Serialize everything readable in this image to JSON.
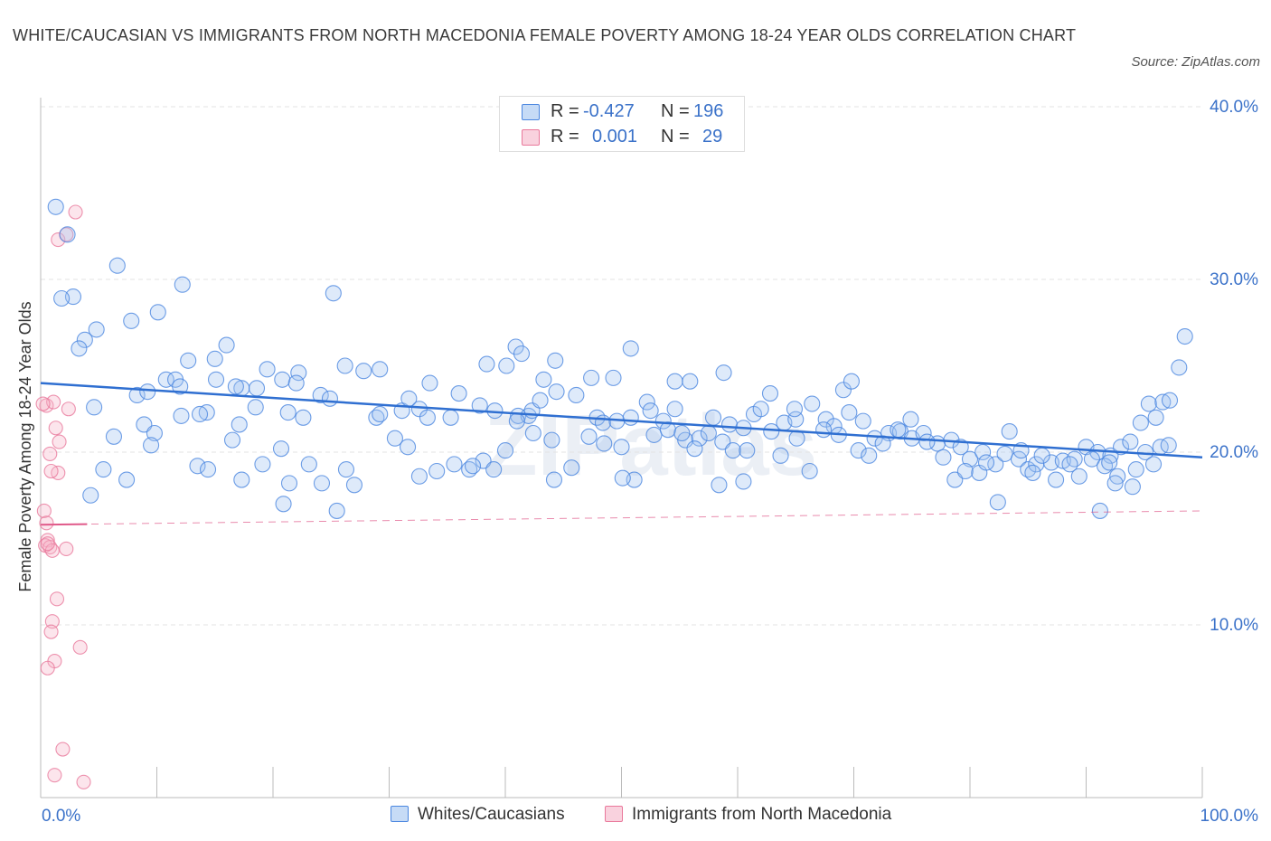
{
  "title": "WHITE/CAUCASIAN VS IMMIGRANTS FROM NORTH MACEDONIA FEMALE POVERTY AMONG 18-24 YEAR OLDS CORRELATION CHART",
  "source": "Source: ZipAtlas.com",
  "watermark": "ZIPatlas",
  "colors": {
    "blue": "#4a86e0",
    "blue_fill": "rgba(160,195,240,0.35)",
    "blue_line": "#2f6fd1",
    "pink": "#e9789b",
    "pink_fill": "rgba(245,180,200,0.35)",
    "pink_line": "#e05a8a",
    "grid": "#e3e3e3",
    "axis_text": "#3b72c9"
  },
  "legend": {
    "rows": [
      {
        "r_label": "R =",
        "r_value": "-0.427",
        "n_label": "N =",
        "n_value": "196"
      },
      {
        "r_label": "R =",
        "r_value": "0.001",
        "n_label": "N =",
        "n_value": "29"
      }
    ]
  },
  "chart_data": {
    "type": "scatter",
    "title": "WHITE/CAUCASIAN VS IMMIGRANTS FROM NORTH MACEDONIA FEMALE POVERTY AMONG 18-24 YEAR OLDS CORRELATION CHART",
    "xlabel": "",
    "ylabel": "Female Poverty Among 18-24 Year Olds",
    "xlim": [
      0,
      100
    ],
    "ylim": [
      0,
      40
    ],
    "x_tick_labels": [
      "0.0%",
      "100.0%"
    ],
    "y_ticks": [
      10,
      20,
      30,
      40
    ],
    "y_tick_labels": [
      "10.0%",
      "20.0%",
      "30.0%",
      "40.0%"
    ],
    "grid": true,
    "series": [
      {
        "name": "Whites/Caucasians",
        "R": -0.427,
        "N": 196,
        "trend": {
          "x": [
            0,
            100
          ],
          "y": [
            24.0,
            19.7
          ]
        },
        "points": [
          [
            1.3,
            34.2
          ],
          [
            2.3,
            32.6
          ],
          [
            6.6,
            30.8
          ],
          [
            2.8,
            29.0
          ],
          [
            1.8,
            28.9
          ],
          [
            12.2,
            29.7
          ],
          [
            25.2,
            29.2
          ],
          [
            10.1,
            28.1
          ],
          [
            7.8,
            27.6
          ],
          [
            4.8,
            27.1
          ],
          [
            3.8,
            26.5
          ],
          [
            3.3,
            26.0
          ],
          [
            16.0,
            26.2
          ],
          [
            15.0,
            25.4
          ],
          [
            12.7,
            25.3
          ],
          [
            26.2,
            25.0
          ],
          [
            27.8,
            24.7
          ],
          [
            29.2,
            24.8
          ],
          [
            19.5,
            24.8
          ],
          [
            15.1,
            24.2
          ],
          [
            10.8,
            24.2
          ],
          [
            11.6,
            24.2
          ],
          [
            12.0,
            23.8
          ],
          [
            17.3,
            23.7
          ],
          [
            8.3,
            23.3
          ],
          [
            24.1,
            23.3
          ],
          [
            24.9,
            23.1
          ],
          [
            4.6,
            22.6
          ],
          [
            18.5,
            22.6
          ],
          [
            14.3,
            22.3
          ],
          [
            13.7,
            22.2
          ],
          [
            21.3,
            22.3
          ],
          [
            22.6,
            22.0
          ],
          [
            8.9,
            21.6
          ],
          [
            9.8,
            21.1
          ],
          [
            17.1,
            21.6
          ],
          [
            6.3,
            20.9
          ],
          [
            16.5,
            20.7
          ],
          [
            9.5,
            20.4
          ],
          [
            20.7,
            20.2
          ],
          [
            13.5,
            19.2
          ],
          [
            5.4,
            19.0
          ],
          [
            14.4,
            19.0
          ],
          [
            19.1,
            19.3
          ],
          [
            23.1,
            19.3
          ],
          [
            7.4,
            18.4
          ],
          [
            21.4,
            18.2
          ],
          [
            17.3,
            18.4
          ],
          [
            24.2,
            18.2
          ],
          [
            4.3,
            17.5
          ],
          [
            20.9,
            17.0
          ],
          [
            25.5,
            16.6
          ],
          [
            28.9,
            22.0
          ],
          [
            29.2,
            22.2
          ],
          [
            31.1,
            22.4
          ],
          [
            32.6,
            22.5
          ],
          [
            33.3,
            22.0
          ],
          [
            35.3,
            22.0
          ],
          [
            36.0,
            23.4
          ],
          [
            37.8,
            22.7
          ],
          [
            39.1,
            22.4
          ],
          [
            41.1,
            22.1
          ],
          [
            42.0,
            22.1
          ],
          [
            42.3,
            22.4
          ],
          [
            43.0,
            23.0
          ],
          [
            44.4,
            23.5
          ],
          [
            46.1,
            23.3
          ],
          [
            47.4,
            24.3
          ],
          [
            47.9,
            22.0
          ],
          [
            48.4,
            21.7
          ],
          [
            49.6,
            21.8
          ],
          [
            50.8,
            22.0
          ],
          [
            52.2,
            22.9
          ],
          [
            52.5,
            22.4
          ],
          [
            53.6,
            21.8
          ],
          [
            54.6,
            22.5
          ],
          [
            55.5,
            20.7
          ],
          [
            56.7,
            20.8
          ],
          [
            57.9,
            22.0
          ],
          [
            59.3,
            21.6
          ],
          [
            60.5,
            21.4
          ],
          [
            61.4,
            22.2
          ],
          [
            62.9,
            21.2
          ],
          [
            64.0,
            21.7
          ],
          [
            65.0,
            21.9
          ],
          [
            66.4,
            22.8
          ],
          [
            67.6,
            21.9
          ],
          [
            68.3,
            21.5
          ],
          [
            69.6,
            22.3
          ],
          [
            70.8,
            21.8
          ],
          [
            71.8,
            20.8
          ],
          [
            73.0,
            21.1
          ],
          [
            74.0,
            21.2
          ],
          [
            75.0,
            20.8
          ],
          [
            76.0,
            21.1
          ],
          [
            77.2,
            20.5
          ],
          [
            78.4,
            20.7
          ],
          [
            79.2,
            20.3
          ],
          [
            80.0,
            19.6
          ],
          [
            81.1,
            20.0
          ],
          [
            82.2,
            19.3
          ],
          [
            83.0,
            19.9
          ],
          [
            84.2,
            19.6
          ],
          [
            85.0,
            19.0
          ],
          [
            85.7,
            19.3
          ],
          [
            87.0,
            19.4
          ],
          [
            88.0,
            19.5
          ],
          [
            89.0,
            19.6
          ],
          [
            90.0,
            20.3
          ],
          [
            91.0,
            20.0
          ],
          [
            92.1,
            19.8
          ],
          [
            93.0,
            20.3
          ],
          [
            93.8,
            20.6
          ],
          [
            94.7,
            21.7
          ],
          [
            95.4,
            22.8
          ],
          [
            96.0,
            22.0
          ],
          [
            96.6,
            22.9
          ],
          [
            97.2,
            23.0
          ],
          [
            98.0,
            24.9
          ],
          [
            98.5,
            26.7
          ],
          [
            26.3,
            19.0
          ],
          [
            27.0,
            18.1
          ],
          [
            30.5,
            20.8
          ],
          [
            31.6,
            20.3
          ],
          [
            34.1,
            18.9
          ],
          [
            35.6,
            19.3
          ],
          [
            36.9,
            19.0
          ],
          [
            38.1,
            19.5
          ],
          [
            39.0,
            19.0
          ],
          [
            40.0,
            20.1
          ],
          [
            41.0,
            21.8
          ],
          [
            42.4,
            21.1
          ],
          [
            44.0,
            20.7
          ],
          [
            45.7,
            19.1
          ],
          [
            47.2,
            20.9
          ],
          [
            48.5,
            20.5
          ],
          [
            50.0,
            20.3
          ],
          [
            51.1,
            18.4
          ],
          [
            52.8,
            21.0
          ],
          [
            54.0,
            21.3
          ],
          [
            55.2,
            21.1
          ],
          [
            56.3,
            20.2
          ],
          [
            57.5,
            21.1
          ],
          [
            58.7,
            20.6
          ],
          [
            59.6,
            20.1
          ],
          [
            60.8,
            20.1
          ],
          [
            62.0,
            22.5
          ],
          [
            63.7,
            19.8
          ],
          [
            65.1,
            20.8
          ],
          [
            66.2,
            18.9
          ],
          [
            67.4,
            21.3
          ],
          [
            68.7,
            21.0
          ],
          [
            70.4,
            20.1
          ],
          [
            71.3,
            19.8
          ],
          [
            72.5,
            20.5
          ],
          [
            73.8,
            21.3
          ],
          [
            74.9,
            21.9
          ],
          [
            76.3,
            20.6
          ],
          [
            77.7,
            19.7
          ],
          [
            78.7,
            18.4
          ],
          [
            79.6,
            18.9
          ],
          [
            80.8,
            18.8
          ],
          [
            81.4,
            19.4
          ],
          [
            82.4,
            17.1
          ],
          [
            83.4,
            21.2
          ],
          [
            84.4,
            20.1
          ],
          [
            85.4,
            18.8
          ],
          [
            86.2,
            19.8
          ],
          [
            87.4,
            18.4
          ],
          [
            88.6,
            19.3
          ],
          [
            89.4,
            18.6
          ],
          [
            90.5,
            19.6
          ],
          [
            91.6,
            19.2
          ],
          [
            92.0,
            19.4
          ],
          [
            92.7,
            18.6
          ],
          [
            94.0,
            18.0
          ],
          [
            94.3,
            19.0
          ],
          [
            95.1,
            20.0
          ],
          [
            95.8,
            19.3
          ],
          [
            96.4,
            20.3
          ],
          [
            97.1,
            20.4
          ],
          [
            38.4,
            25.1
          ],
          [
            40.1,
            25.0
          ],
          [
            40.9,
            26.1
          ],
          [
            41.4,
            25.7
          ],
          [
            43.3,
            24.2
          ],
          [
            44.3,
            25.3
          ],
          [
            49.3,
            24.3
          ],
          [
            50.8,
            26.0
          ],
          [
            54.6,
            24.1
          ],
          [
            55.9,
            24.1
          ],
          [
            58.8,
            24.6
          ],
          [
            62.8,
            23.4
          ],
          [
            64.9,
            22.5
          ],
          [
            69.1,
            23.6
          ],
          [
            69.8,
            24.1
          ],
          [
            60.5,
            18.3
          ],
          [
            58.4,
            18.1
          ],
          [
            50.1,
            18.5
          ],
          [
            44.2,
            18.4
          ],
          [
            37.2,
            19.2
          ],
          [
            32.6,
            18.6
          ],
          [
            91.2,
            16.6
          ],
          [
            92.5,
            18.2
          ],
          [
            31.7,
            23.1
          ],
          [
            33.5,
            24.0
          ],
          [
            22.2,
            24.6
          ],
          [
            20.8,
            24.2
          ],
          [
            16.8,
            23.8
          ],
          [
            18.6,
            23.7
          ],
          [
            22.0,
            24.0
          ],
          [
            12.1,
            22.1
          ],
          [
            9.2,
            23.5
          ]
        ]
      },
      {
        "name": "Immigrants from North Macedonia",
        "R": 0.001,
        "N": 29,
        "trend": {
          "x": [
            0,
            100
          ],
          "y": [
            15.8,
            16.6
          ]
        },
        "points": [
          [
            3.0,
            33.9
          ],
          [
            1.5,
            32.3
          ],
          [
            2.2,
            32.6
          ],
          [
            0.5,
            22.7
          ],
          [
            1.1,
            22.9
          ],
          [
            2.4,
            22.5
          ],
          [
            1.3,
            21.4
          ],
          [
            1.6,
            20.6
          ],
          [
            0.8,
            19.9
          ],
          [
            1.5,
            18.8
          ],
          [
            0.9,
            18.9
          ],
          [
            0.3,
            16.6
          ],
          [
            0.5,
            15.9
          ],
          [
            0.6,
            14.9
          ],
          [
            0.4,
            14.6
          ],
          [
            0.8,
            14.5
          ],
          [
            1.0,
            14.3
          ],
          [
            0.6,
            14.7
          ],
          [
            2.2,
            14.4
          ],
          [
            1.4,
            11.5
          ],
          [
            1.0,
            10.2
          ],
          [
            0.9,
            9.6
          ],
          [
            3.4,
            8.7
          ],
          [
            1.2,
            7.9
          ],
          [
            0.6,
            7.5
          ],
          [
            1.9,
            2.8
          ],
          [
            1.2,
            1.3
          ],
          [
            3.7,
            0.9
          ],
          [
            0.2,
            22.8
          ]
        ]
      }
    ]
  },
  "bottom_legend": [
    "Whites/Caucasians",
    "Immigrants from North Macedonia"
  ]
}
